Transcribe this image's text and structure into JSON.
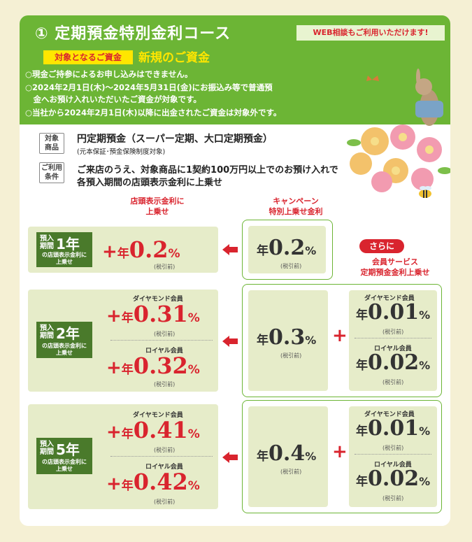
{
  "header": {
    "title": "① 定期預金特別金利コース",
    "web_badge": "WEB相談もご利用いただけます!",
    "target_label": "対象となるご資金",
    "target_value": "新規のご資金",
    "notes": [
      "○現金ご持参によるお申し込みはできません。",
      "○2024年2月1日(木)～2024年5月31日(金)にお振込み等で普通預",
      "　金へお預け入れいただいたご資金が対象です。",
      "○当社から2024年2月1日(木)以降に出金されたご資金は対象外です。"
    ]
  },
  "product": {
    "tag_l1": "対象",
    "tag_l2": "商品",
    "name": "円定期預金（スーパー定期、大口定期預金）",
    "sub": "(元本保証･預金保険制度対象)"
  },
  "condition": {
    "tag_l1": "ご利用",
    "tag_l2": "条件",
    "line1": "ご来店のうえ、対象商品に1契約100万円以上でのお預け入れで",
    "line2": "各預入期間の店頭表示金利に上乗せ"
  },
  "columns": {
    "store_l1": "店頭表示金利に",
    "store_l2": "上乗せ",
    "camp_l1": "キャンペーン",
    "camp_l2": "特別上乗せ金利",
    "sarani": "さらに",
    "member_l1": "会員サービス",
    "member_l2": "定期預金金利上乗せ"
  },
  "common": {
    "plus": "+",
    "nen": "年",
    "pct": "%",
    "tax": "(税引前)",
    "yonyu_l1": "預入",
    "yonyu_l2": "期間",
    "box_sub_l1": "の店頭表示金利に",
    "box_sub_l2": "上乗せ",
    "diamond": "ダイヤモンド会員",
    "royal": "ロイヤル会員"
  },
  "rows": [
    {
      "term": "1年",
      "rate": "0.2",
      "campaign": "0.2"
    },
    {
      "term": "2年",
      "diamond_rate": "0.31",
      "royal_rate": "0.32",
      "campaign": "0.3",
      "diamond_extra": "0.01",
      "royal_extra": "0.02"
    },
    {
      "term": "5年",
      "diamond_rate": "0.41",
      "royal_rate": "0.42",
      "campaign": "0.4",
      "diamond_extra": "0.01",
      "royal_extra": "0.02"
    }
  ]
}
